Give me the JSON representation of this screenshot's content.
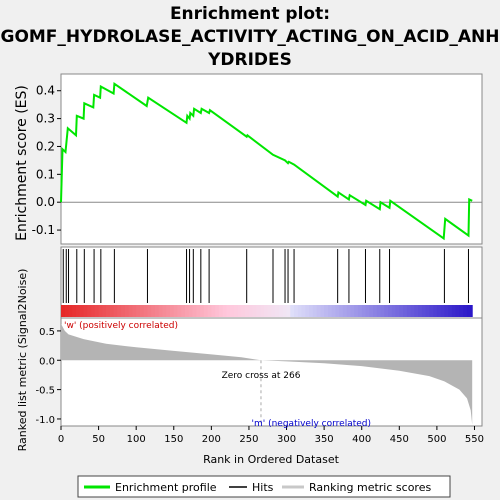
{
  "chart_data": {
    "type": "line",
    "title": "Enrichment plot: GOMF_HYDROLASE_ACTIVITY_ACTING_ON_ACID_ANHYDRIDES",
    "title_lines": [
      "Enrichment plot:",
      "GOMF_HYDROLASE_ACTIVITY_ACTING_ON_ACID_ANH",
      "YDRIDES"
    ],
    "es_panel": {
      "ylabel": "Enrichment score (ES)",
      "ylim": [
        -0.15,
        0.46
      ],
      "yticks": [
        -0.1,
        0.0,
        0.1,
        0.2,
        0.3,
        0.4
      ],
      "ytick_labels": [
        "-0.1",
        "0.0",
        "0.1",
        "0.2",
        "0.3",
        "0.4"
      ],
      "xlim": [
        0,
        560
      ],
      "line_color": "#00e600",
      "es_curve": [
        [
          0,
          0.0
        ],
        [
          2,
          0.19
        ],
        [
          6,
          0.18
        ],
        [
          9,
          0.265
        ],
        [
          20,
          0.24
        ],
        [
          21,
          0.31
        ],
        [
          30,
          0.3
        ],
        [
          31,
          0.355
        ],
        [
          43,
          0.34
        ],
        [
          44,
          0.385
        ],
        [
          52,
          0.375
        ],
        [
          53,
          0.415
        ],
        [
          70,
          0.39
        ],
        [
          71,
          0.425
        ],
        [
          114,
          0.345
        ],
        [
          116,
          0.375
        ],
        [
          167,
          0.285
        ],
        [
          168,
          0.31
        ],
        [
          171,
          0.3
        ],
        [
          172,
          0.32
        ],
        [
          176,
          0.31
        ],
        [
          177,
          0.335
        ],
        [
          186,
          0.32
        ],
        [
          187,
          0.335
        ],
        [
          197,
          0.32
        ],
        [
          198,
          0.33
        ],
        [
          247,
          0.235
        ],
        [
          248,
          0.24
        ],
        [
          282,
          0.17
        ],
        [
          298,
          0.15
        ],
        [
          302,
          0.14
        ],
        [
          303,
          0.145
        ],
        [
          310,
          0.135
        ],
        [
          368,
          0.02
        ],
        [
          369,
          0.035
        ],
        [
          383,
          0.01
        ],
        [
          384,
          0.025
        ],
        [
          405,
          -0.01
        ],
        [
          406,
          0.005
        ],
        [
          424,
          -0.025
        ],
        [
          425,
          0.0
        ],
        [
          437,
          -0.02
        ],
        [
          438,
          0.005
        ],
        [
          509,
          -0.13
        ],
        [
          511,
          -0.06
        ],
        [
          542,
          -0.12
        ],
        [
          543,
          0.01
        ],
        [
          547,
          0.005
        ]
      ]
    },
    "hits_panel": {
      "hit_positions": [
        3,
        7,
        10,
        21,
        31,
        44,
        53,
        71,
        115,
        167,
        171,
        176,
        186,
        197,
        247,
        282,
        298,
        302,
        310,
        368,
        383,
        405,
        424,
        437,
        510,
        542
      ]
    },
    "metric_panel": {
      "ylabel": "Ranked list metric (Signal2Noise)",
      "xlabel": "Rank in Ordered Dataset",
      "ylim": [
        -1.12,
        0.72
      ],
      "yticks": [
        -1.0,
        -0.5,
        0.0,
        0.5
      ],
      "ytick_labels": [
        "-1.0",
        "-0.5",
        "0.0",
        "0.5"
      ],
      "xlim": [
        0,
        560
      ],
      "xticks": [
        0,
        50,
        100,
        150,
        200,
        250,
        300,
        350,
        400,
        450,
        500,
        550
      ],
      "xtick_labels": [
        "0",
        "50",
        "100",
        "150",
        "200",
        "250",
        "300",
        "350",
        "400",
        "450",
        "500",
        "550"
      ],
      "n_genes": 547,
      "zero_cross": 266,
      "metric_curve": [
        [
          0,
          0.62
        ],
        [
          5,
          0.5
        ],
        [
          10,
          0.44
        ],
        [
          30,
          0.36
        ],
        [
          60,
          0.28
        ],
        [
          100,
          0.22
        ],
        [
          150,
          0.16
        ],
        [
          200,
          0.1
        ],
        [
          240,
          0.05
        ],
        [
          266,
          0.0
        ],
        [
          300,
          -0.02
        ],
        [
          350,
          -0.05
        ],
        [
          400,
          -0.1
        ],
        [
          450,
          -0.18
        ],
        [
          490,
          -0.27
        ],
        [
          510,
          -0.36
        ],
        [
          530,
          -0.5
        ],
        [
          540,
          -0.65
        ],
        [
          545,
          -0.85
        ],
        [
          547,
          -1.1
        ]
      ]
    },
    "annotations": {
      "pos_label": "'w' (positively correlated)",
      "neg_label": "'m' (negatively correlated)",
      "zero_cross_label": "Zero cross at 266",
      "pos_color": "#cc0000",
      "neg_color": "#0000cc"
    },
    "legend": {
      "placement": "bottom",
      "items": [
        {
          "label": "Enrichment profile",
          "color": "#00e600"
        },
        {
          "label": "Hits",
          "color": "#000000"
        },
        {
          "label": "Ranking metric scores",
          "color": "#c8c8c8"
        }
      ]
    }
  }
}
